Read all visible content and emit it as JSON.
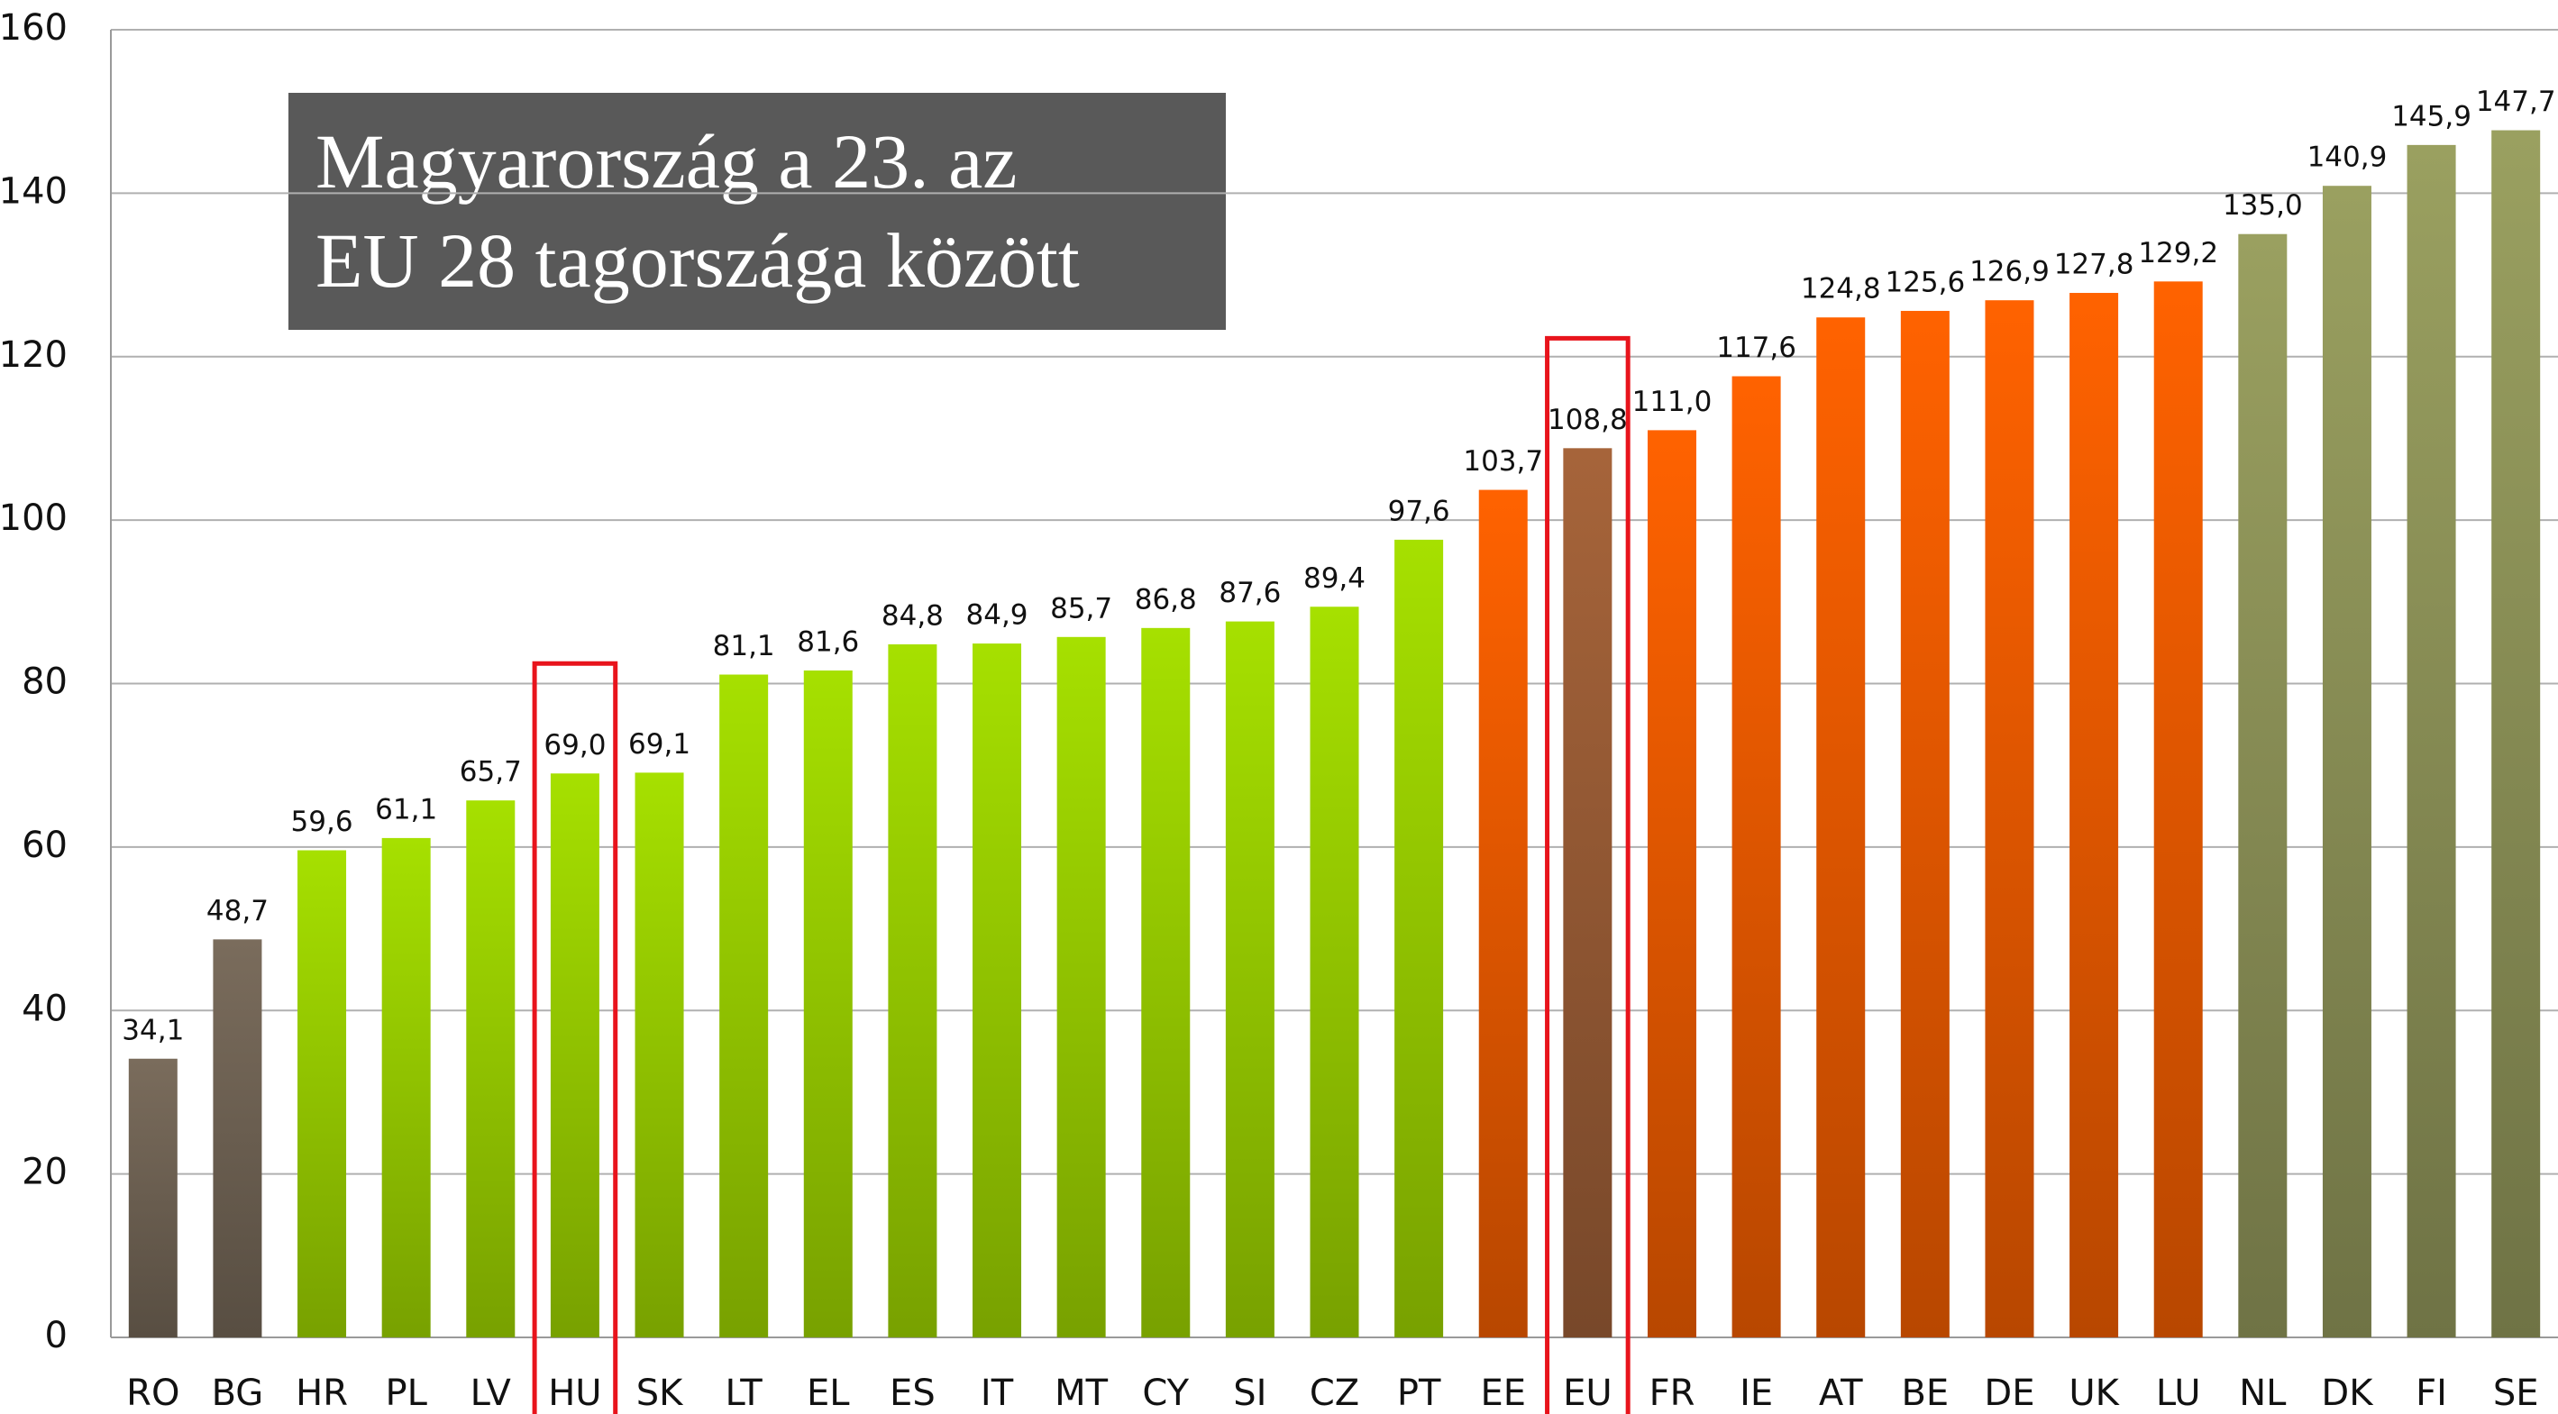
{
  "chart_data": {
    "type": "bar",
    "title": [
      "Magyarország a 23. az",
      "EU 28 tagországa között"
    ],
    "categories": [
      "RO",
      "BG",
      "HR",
      "PL",
      "LV",
      "HU",
      "SK",
      "LT",
      "EL",
      "ES",
      "IT",
      "MT",
      "CY",
      "SI",
      "CZ",
      "PT",
      "EE",
      "EU",
      "FR",
      "IE",
      "AT",
      "BE",
      "DE",
      "UK",
      "LU",
      "NL",
      "DK",
      "FI",
      "SE"
    ],
    "values": [
      34.1,
      48.7,
      59.6,
      61.1,
      65.7,
      69.0,
      69.1,
      81.1,
      81.6,
      84.8,
      84.9,
      85.7,
      86.8,
      87.6,
      89.4,
      97.6,
      103.7,
      108.8,
      111.0,
      117.6,
      124.8,
      125.6,
      126.9,
      127.8,
      129.2,
      135.0,
      140.9,
      145.9,
      147.7
    ],
    "value_labels": [
      "34,1",
      "48,7",
      "59,6",
      "61,1",
      "65,7",
      "69,0",
      "69,1",
      "81,1",
      "81,6",
      "84,8",
      "84,9",
      "85,7",
      "86,8",
      "87,6",
      "89,4",
      "97,6",
      "103,7",
      "108,8",
      "111,0",
      "117,6",
      "124,8",
      "125,6",
      "126,9",
      "127,8",
      "129,2",
      "135,0",
      "140,9",
      "145,9",
      "147,7"
    ],
    "colors": [
      "#7a6c5c",
      "#7a6c5c",
      "#a6e000",
      "#a6e000",
      "#a6e000",
      "#a6e000",
      "#a6e000",
      "#a6e000",
      "#a6e000",
      "#a6e000",
      "#a6e000",
      "#a6e000",
      "#a6e000",
      "#a6e000",
      "#a6e000",
      "#a6e000",
      "#ff6200",
      "#a6643a",
      "#ff6200",
      "#ff6200",
      "#ff6200",
      "#ff6200",
      "#ff6200",
      "#ff6200",
      "#ff6200",
      "#9aa060",
      "#9aa060",
      "#9aa060",
      "#9aa060"
    ],
    "highlight": [
      5,
      17
    ],
    "highlight_color": "#e8141c",
    "ylim": [
      0,
      160
    ],
    "yticks": [
      0,
      20,
      40,
      60,
      80,
      100,
      120,
      140,
      160
    ],
    "grid": true
  }
}
